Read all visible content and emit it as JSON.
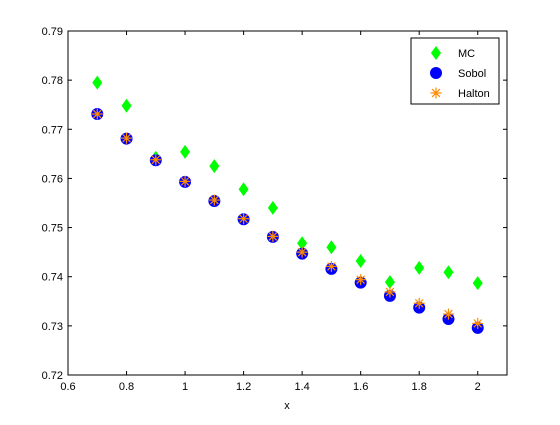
{
  "chart_data": {
    "type": "scatter",
    "title": "",
    "xlabel": "x",
    "ylabel": "",
    "xlim": [
      0.6,
      2.1
    ],
    "ylim": [
      0.72,
      0.79
    ],
    "xticks": [
      "0.6",
      "0.8",
      "1",
      "1.2",
      "1.4",
      "1.6",
      "1.8",
      "2"
    ],
    "yticks": [
      "0.72",
      "0.73",
      "0.74",
      "0.75",
      "0.76",
      "0.77",
      "0.78",
      "0.79"
    ],
    "grid": false,
    "legend_position": "top-right",
    "x": [
      0.7,
      0.8,
      0.9,
      1.0,
      1.1,
      1.2,
      1.3,
      1.4,
      1.5,
      1.6,
      1.7,
      1.8,
      1.9,
      2.0
    ],
    "series": [
      {
        "name": "MC",
        "marker": "diamond",
        "color": "#00ff00",
        "values": [
          0.7795,
          0.7748,
          0.7642,
          0.7654,
          0.7625,
          0.7578,
          0.754,
          0.7468,
          0.746,
          0.7432,
          0.7389,
          0.7418,
          0.7409,
          0.7387
        ]
      },
      {
        "name": "Sobol",
        "marker": "circle",
        "color": "#0000ff",
        "values": [
          0.7731,
          0.7681,
          0.7637,
          0.7593,
          0.7554,
          0.7517,
          0.7481,
          0.7447,
          0.7416,
          0.7388,
          0.7361,
          0.7337,
          0.7314,
          0.7296
        ]
      },
      {
        "name": "Halton",
        "marker": "asterisk",
        "color": "#ff8c00",
        "values": [
          0.7731,
          0.7682,
          0.7638,
          0.7594,
          0.7556,
          0.7518,
          0.7482,
          0.745,
          0.7421,
          0.7394,
          0.7369,
          0.7346,
          0.7324,
          0.7305
        ]
      }
    ]
  }
}
